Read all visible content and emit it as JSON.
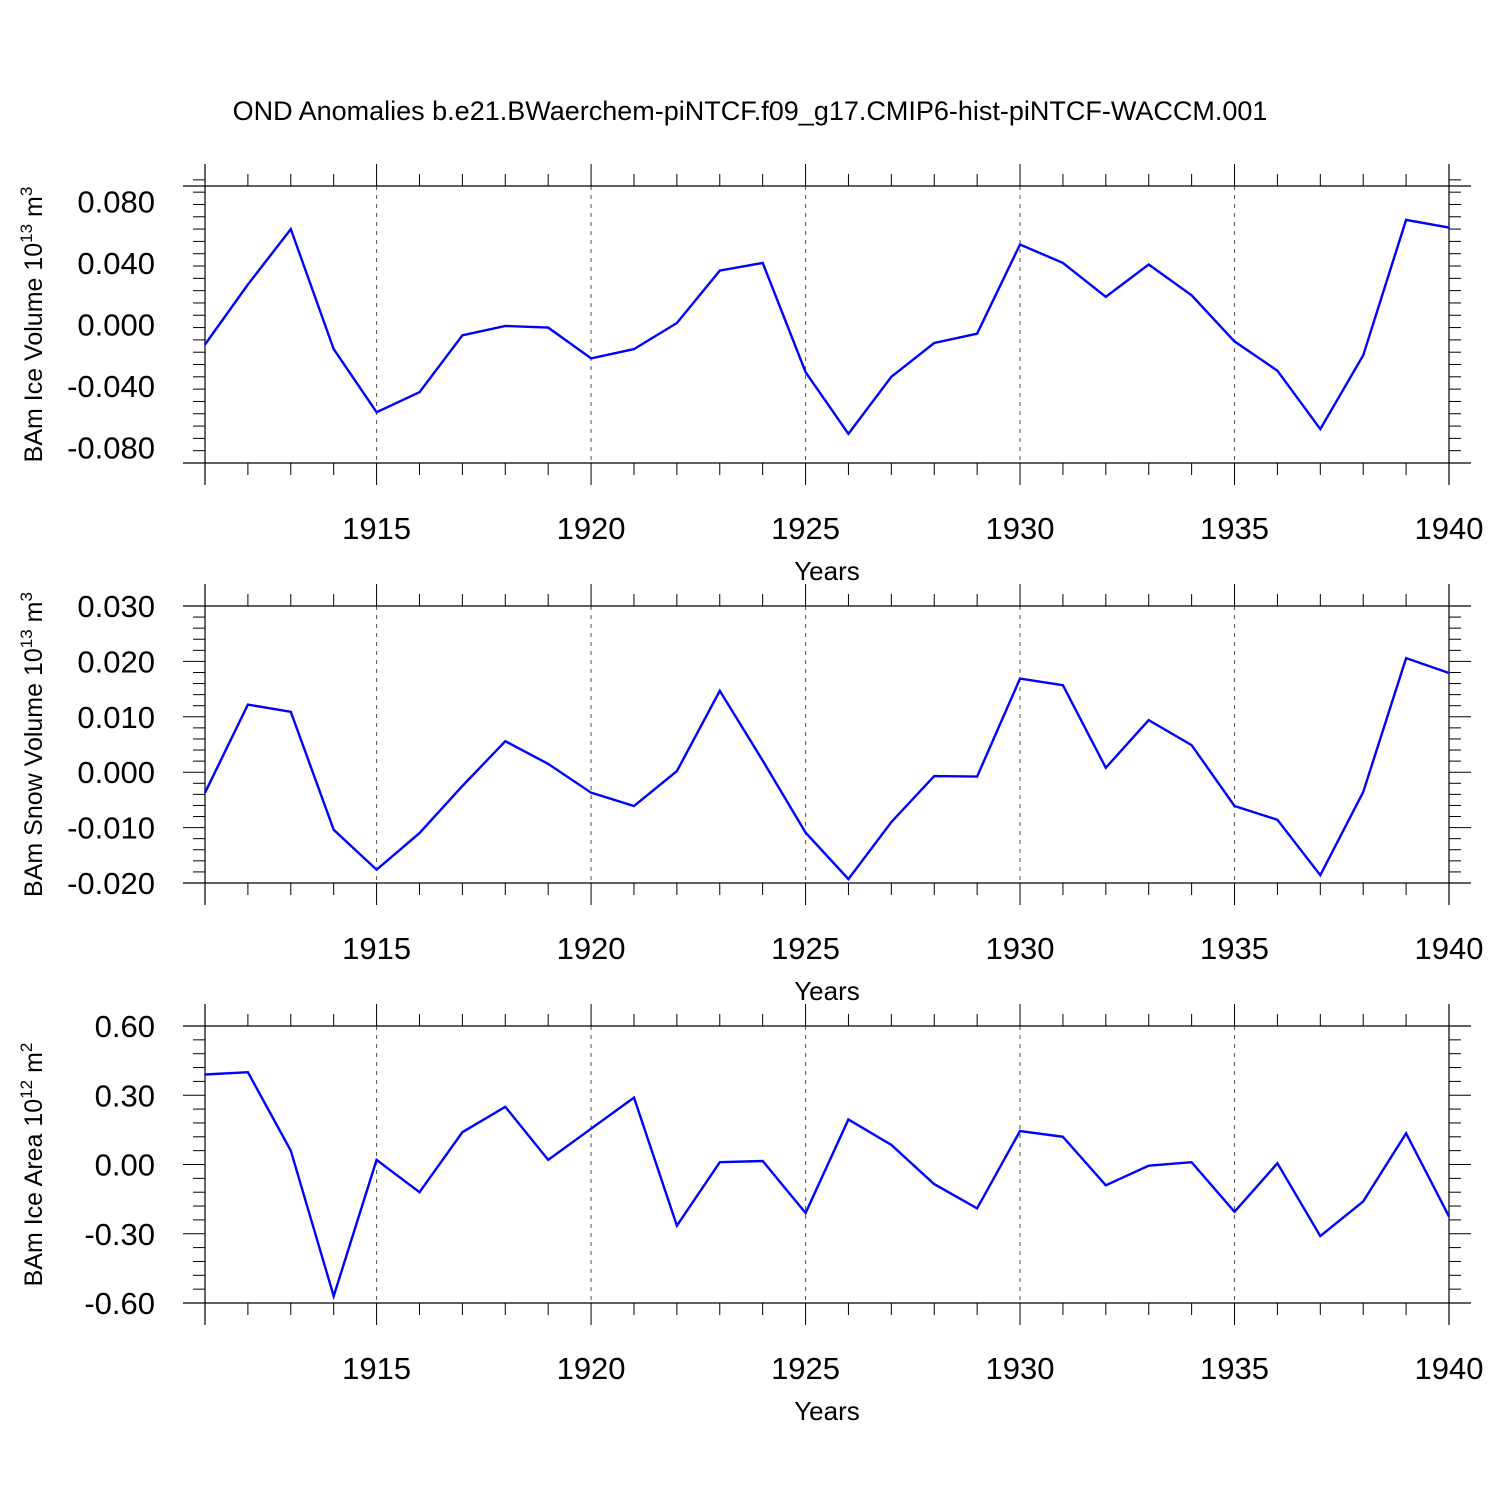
{
  "figure_title": "OND Anomalies b.e21.BWaerchem-piNTCF.f09_g17.CMIP6-hist-piNTCF-WACCM.001",
  "chart_data": [
    {
      "type": "line",
      "title": "",
      "ylabel": "BAm Ice Volume 10",
      "ylabel_exp": "13",
      "ylabel_unit": " m",
      "ylabel_unit_exp": "3",
      "xlabel": "Years",
      "xlim": [
        1911,
        1940
      ],
      "ylim": [
        -0.09,
        0.09
      ],
      "xticks": [
        1915,
        1920,
        1925,
        1930,
        1935,
        1940
      ],
      "xtick_labels": [
        "1915",
        "1920",
        "1925",
        "1930",
        "1935",
        "1940"
      ],
      "yticks": [
        -0.08,
        -0.04,
        0.0,
        0.04,
        0.08
      ],
      "ytick_labels": [
        "-0.080",
        "-0.040",
        "0.000",
        "0.040",
        "0.080"
      ],
      "series_color": "#0000ff",
      "x": [
        1911,
        1912,
        1913,
        1914,
        1915,
        1916,
        1917,
        1918,
        1919,
        1920,
        1921,
        1922,
        1923,
        1924,
        1925,
        1926,
        1927,
        1928,
        1929,
        1930,
        1931,
        1932,
        1933,
        1934,
        1935,
        1936,
        1937,
        1938,
        1939,
        1940
      ],
      "values": [
        -0.013,
        0.026,
        0.062,
        -0.016,
        -0.057,
        -0.044,
        -0.007,
        -0.001,
        -0.002,
        -0.022,
        -0.016,
        0.001,
        0.035,
        0.04,
        -0.031,
        -0.071,
        -0.034,
        -0.012,
        -0.006,
        0.052,
        0.04,
        0.018,
        0.039,
        0.019,
        -0.011,
        -0.03,
        -0.068,
        -0.02,
        0.068,
        0.063
      ]
    },
    {
      "type": "line",
      "title": "",
      "ylabel": "BAm Snow Volume 10",
      "ylabel_exp": "13",
      "ylabel_unit": " m",
      "ylabel_unit_exp": "3",
      "xlabel": "Years",
      "xlim": [
        1911,
        1940
      ],
      "ylim": [
        -0.02,
        0.03
      ],
      "xticks": [
        1915,
        1920,
        1925,
        1930,
        1935,
        1940
      ],
      "xtick_labels": [
        "1915",
        "1920",
        "1925",
        "1930",
        "1935",
        "1940"
      ],
      "yticks": [
        -0.02,
        -0.01,
        0.0,
        0.01,
        0.02,
        0.03
      ],
      "ytick_labels": [
        "-0.020",
        "-0.010",
        "0.000",
        "0.010",
        "0.020",
        "0.030"
      ],
      "series_color": "#0000ff",
      "x": [
        1911,
        1912,
        1913,
        1914,
        1915,
        1916,
        1917,
        1918,
        1919,
        1920,
        1921,
        1922,
        1923,
        1924,
        1925,
        1926,
        1927,
        1928,
        1929,
        1930,
        1931,
        1932,
        1933,
        1934,
        1935,
        1936,
        1937,
        1938,
        1939,
        1940
      ],
      "values": [
        -0.0037,
        0.0122,
        0.0109,
        -0.0104,
        -0.0176,
        -0.011,
        -0.0025,
        0.0056,
        0.0015,
        -0.0037,
        -0.0061,
        0.0002,
        0.0147,
        0.0021,
        -0.0109,
        -0.0193,
        -0.009,
        -0.0007,
        -0.0008,
        0.0169,
        0.0157,
        0.0008,
        0.0094,
        0.0049,
        -0.0061,
        -0.0086,
        -0.0186,
        -0.0036,
        0.0206,
        0.0179
      ]
    },
    {
      "type": "line",
      "title": "",
      "ylabel": "BAm Ice Area 10",
      "ylabel_exp": "12",
      "ylabel_unit": " m",
      "ylabel_unit_exp": "2",
      "xlabel": "Years",
      "xlim": [
        1911,
        1940
      ],
      "ylim": [
        -0.6,
        0.6
      ],
      "xticks": [
        1915,
        1920,
        1925,
        1930,
        1935,
        1940
      ],
      "xtick_labels": [
        "1915",
        "1920",
        "1925",
        "1930",
        "1935",
        "1940"
      ],
      "yticks": [
        -0.6,
        -0.3,
        0.0,
        0.3,
        0.6
      ],
      "ytick_labels": [
        "-0.60",
        "-0.30",
        "0.00",
        "0.30",
        "0.60"
      ],
      "series_color": "#0000ff",
      "x": [
        1911,
        1912,
        1913,
        1914,
        1915,
        1916,
        1917,
        1918,
        1919,
        1920,
        1921,
        1922,
        1923,
        1924,
        1925,
        1926,
        1927,
        1928,
        1929,
        1930,
        1931,
        1932,
        1933,
        1934,
        1935,
        1936,
        1937,
        1938,
        1939,
        1940
      ],
      "values": [
        0.39,
        0.4,
        0.06,
        -0.57,
        0.02,
        -0.12,
        0.14,
        0.25,
        0.02,
        0.155,
        0.29,
        -0.265,
        0.01,
        0.015,
        -0.21,
        0.195,
        0.085,
        -0.085,
        -0.19,
        0.145,
        0.12,
        -0.09,
        -0.005,
        0.01,
        -0.205,
        0.005,
        -0.31,
        -0.16,
        0.135,
        -0.225
      ]
    }
  ]
}
